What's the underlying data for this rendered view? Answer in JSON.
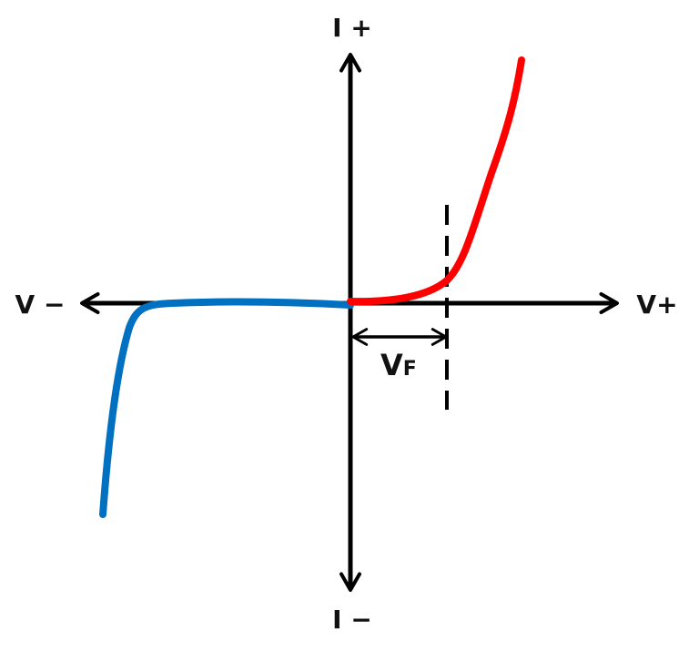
{
  "labels": {
    "i_plus": "I +",
    "i_minus": "I −",
    "v_minus": "V −",
    "v_plus": "V+",
    "vf_main": "V",
    "vf_sub": "F"
  },
  "colors": {
    "forward_curve": "#ff0000",
    "reverse_curve": "#0070c0",
    "axes": "#000000"
  }
}
